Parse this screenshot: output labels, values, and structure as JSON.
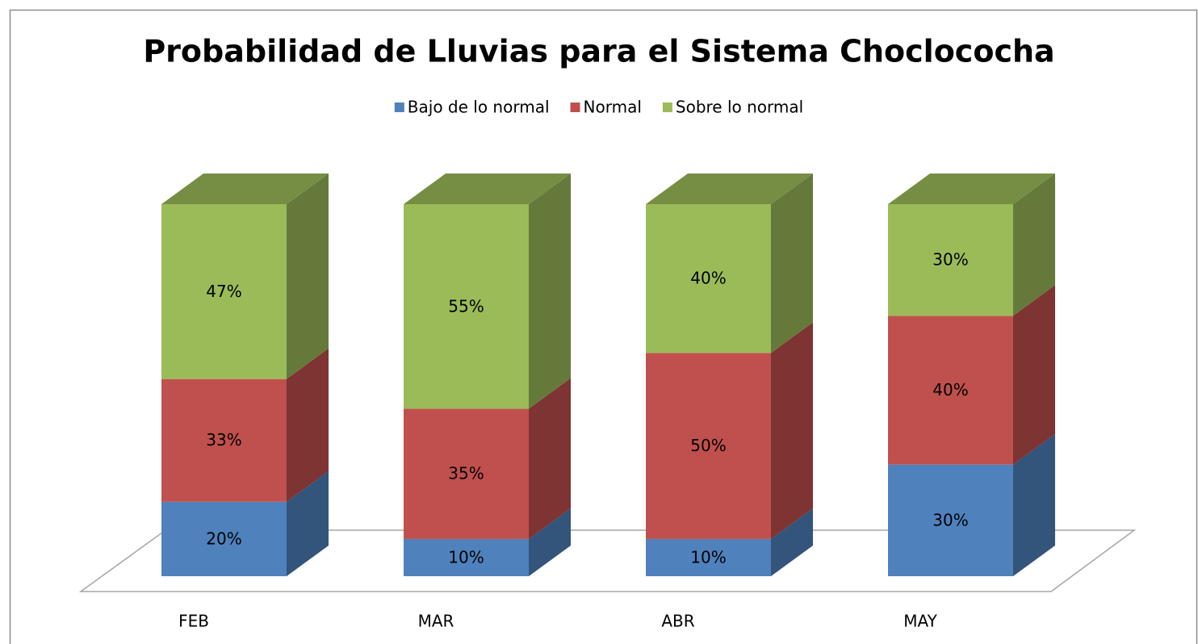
{
  "chart_data": {
    "type": "bar3d_stacked",
    "title": "Probabilidad de Lluvias para el Sistema Choclococha",
    "categories": [
      "FEB",
      "MAR",
      "ABR",
      "MAY"
    ],
    "series": [
      {
        "name": "Bajo de lo normal",
        "color": "#4f81bd",
        "values": [
          20,
          10,
          10,
          30
        ],
        "value_labels": [
          "20%",
          "10%",
          "10%",
          "30%"
        ]
      },
      {
        "name": "Normal",
        "color": "#c0504d",
        "values": [
          33,
          35,
          50,
          40
        ],
        "value_labels": [
          "33%",
          "35%",
          "50%",
          "40%"
        ]
      },
      {
        "name": "Sobre lo normal",
        "color": "#9bbb59",
        "values": [
          47,
          55,
          40,
          30
        ],
        "value_labels": [
          "47%",
          "55%",
          "40%",
          "30%"
        ]
      }
    ],
    "legend": "top"
  }
}
